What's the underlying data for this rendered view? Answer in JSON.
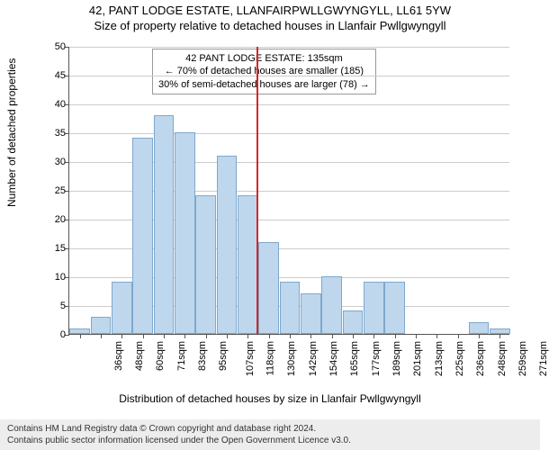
{
  "title_line1": "42, PANT LODGE ESTATE, LLANFAIRPWLLGWYNGYLL, LL61 5YW",
  "title_line2": "Size of property relative to detached houses in Llanfair Pwllgwyngyll",
  "y_axis_label": "Number of detached properties",
  "x_axis_label": "Distribution of detached houses by size in Llanfair Pwllgwyngyll",
  "chart": {
    "type": "histogram",
    "ylim": [
      0,
      50
    ],
    "ytick_step": 5,
    "bar_fill": "#bed7ed",
    "bar_stroke": "#7fa8cc",
    "grid_color": "#cccccc",
    "axis_color": "#555555",
    "background_color": "#ffffff",
    "ref_line_color": "#d92424",
    "ref_line_value": 135,
    "x_labels": [
      "36sqm",
      "48sqm",
      "60sqm",
      "71sqm",
      "83sqm",
      "95sqm",
      "107sqm",
      "118sqm",
      "130sqm",
      "142sqm",
      "154sqm",
      "165sqm",
      "177sqm",
      "189sqm",
      "201sqm",
      "213sqm",
      "225sqm",
      "236sqm",
      "248sqm",
      "259sqm",
      "271sqm"
    ],
    "values": [
      1,
      3,
      9,
      34,
      38,
      35,
      24,
      31,
      24,
      16,
      9,
      7,
      10,
      4,
      9,
      9,
      0,
      0,
      0,
      2,
      1
    ]
  },
  "annotation": {
    "line1": "42 PANT LODGE ESTATE: 135sqm",
    "line2": "← 70% of detached houses are smaller (185)",
    "line3": "30% of semi-detached houses are larger (78) →"
  },
  "footer_line1": "Contains HM Land Registry data © Crown copyright and database right 2024.",
  "footer_line2": "Contains public sector information licensed under the Open Government Licence v3.0."
}
